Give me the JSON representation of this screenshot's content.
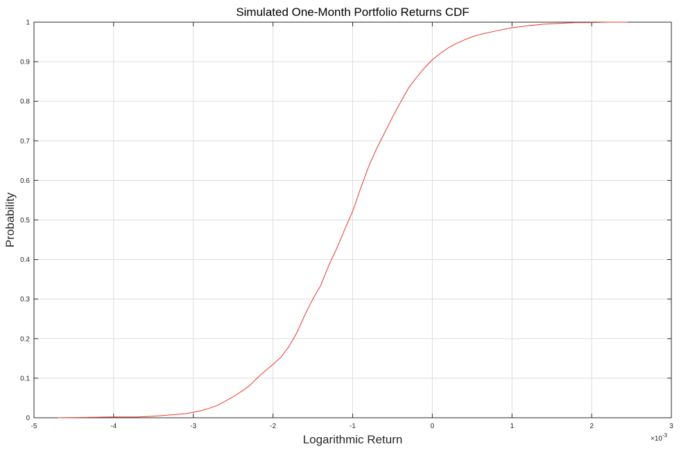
{
  "chart_data": {
    "type": "line",
    "title": "Simulated One-Month  Portfolio Returns CDF",
    "xlabel": "Logarithmic Return",
    "ylabel": "Probability",
    "x_exponent_prefix": "×10",
    "x_exponent_power": "-3",
    "xlim": [
      -5,
      3
    ],
    "ylim": [
      0,
      1
    ],
    "x_ticks": [
      -5,
      -4,
      -3,
      -2,
      -1,
      0,
      1,
      2,
      3
    ],
    "y_ticks": [
      0,
      0.1,
      0.2,
      0.3,
      0.4,
      0.5,
      0.6,
      0.7,
      0.8,
      0.9,
      1
    ],
    "x_tick_labels": [
      "-5",
      "-4",
      "-3",
      "-2",
      "-1",
      "0",
      "1",
      "2",
      "3"
    ],
    "y_tick_labels": [
      "0",
      "0.1",
      "0.2",
      "0.3",
      "0.4",
      "0.5",
      "0.6",
      "0.7",
      "0.8",
      "0.9",
      "1"
    ],
    "grid": true,
    "series": [
      {
        "color": "#e8352b",
        "x": [
          -4.7,
          -4.3,
          -4.0,
          -3.7,
          -3.5,
          -3.3,
          -3.1,
          -3.0,
          -2.9,
          -2.8,
          -2.7,
          -2.6,
          -2.5,
          -2.4,
          -2.3,
          -2.2,
          -2.1,
          -2.0,
          -1.9,
          -1.8,
          -1.7,
          -1.6,
          -1.5,
          -1.4,
          -1.3,
          -1.2,
          -1.1,
          -1.0,
          -0.9,
          -0.8,
          -0.7,
          -0.6,
          -0.5,
          -0.4,
          -0.3,
          -0.2,
          -0.1,
          0.0,
          0.1,
          0.2,
          0.3,
          0.4,
          0.5,
          0.6,
          0.8,
          1.0,
          1.2,
          1.4,
          1.6,
          1.8,
          2.0,
          2.2,
          2.45
        ],
        "y": [
          0.0,
          0.001,
          0.002,
          0.002,
          0.004,
          0.007,
          0.01,
          0.014,
          0.018,
          0.024,
          0.031,
          0.042,
          0.053,
          0.066,
          0.08,
          0.1,
          0.118,
          0.135,
          0.153,
          0.18,
          0.215,
          0.26,
          0.3,
          0.335,
          0.385,
          0.428,
          0.476,
          0.522,
          0.58,
          0.635,
          0.68,
          0.72,
          0.76,
          0.797,
          0.833,
          0.86,
          0.884,
          0.905,
          0.921,
          0.935,
          0.946,
          0.955,
          0.963,
          0.969,
          0.978,
          0.986,
          0.991,
          0.995,
          0.997,
          0.999,
          0.999,
          1.0,
          1.0
        ]
      }
    ]
  }
}
